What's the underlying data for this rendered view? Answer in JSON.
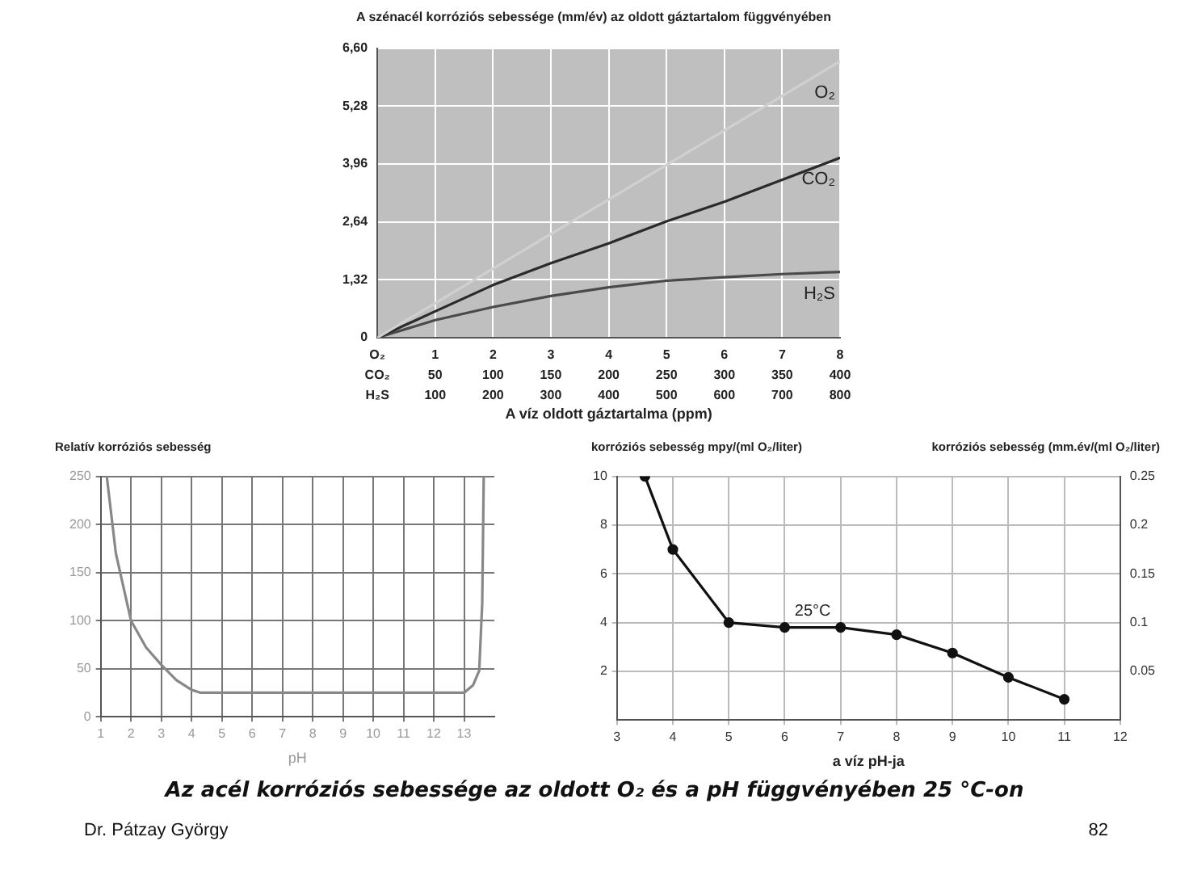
{
  "chart_data": [
    {
      "type": "line",
      "title": "A szénacél korróziós sebessége (mm/év) az oldott gáztartalom függvényében",
      "xlabel": "A víz oldott gáztartalma (ppm)",
      "xlim": [
        0,
        8
      ],
      "xticks": [
        {
          "value": 0,
          "label": "O₂"
        },
        1,
        2,
        3,
        4,
        5,
        6,
        7,
        8
      ],
      "x2lim": [
        0,
        400
      ],
      "x2ticks": [
        {
          "value": 0,
          "label": "CO₂"
        },
        50,
        100,
        150,
        200,
        250,
        300,
        350,
        400
      ],
      "annotations": [
        "H₂S",
        "100",
        "200",
        "300",
        "400",
        "500",
        "600",
        "700",
        "800"
      ],
      "ylim": [
        0,
        6.6
      ],
      "yticks": [
        0,
        {
          "value": 1.32,
          "label": "1,32"
        },
        {
          "value": 2.64,
          "label": "2,64"
        },
        {
          "value": 3.96,
          "label": "3,96"
        },
        {
          "value": 5.28,
          "label": "5,28"
        },
        {
          "value": 6.6,
          "label": "6,60"
        }
      ],
      "grid": true,
      "marker": "none",
      "series": [
        {
          "name": "O₂",
          "color": "#d0d0d0",
          "x": [
            0,
            4,
            8
          ],
          "values": [
            0,
            3.15,
            6.3
          ]
        },
        {
          "name": "CO₂",
          "color": "#2a2a2a",
          "x": [
            0,
            1,
            2,
            3,
            4,
            5,
            6,
            7,
            8
          ],
          "values": [
            0,
            0.6,
            1.2,
            1.7,
            2.15,
            2.65,
            3.1,
            3.6,
            4.1
          ]
        },
        {
          "name": "H₂S",
          "color": "#4a4a4a",
          "x": [
            0,
            1,
            2,
            3,
            4,
            5,
            6,
            7,
            8
          ],
          "values": [
            0,
            0.4,
            0.7,
            0.95,
            1.15,
            1.3,
            1.38,
            1.45,
            1.5
          ]
        }
      ]
    },
    {
      "type": "line",
      "ylabel": "Relatív korróziós sebesség",
      "xlabel": "pH",
      "xlim": [
        1,
        14
      ],
      "xticks": [
        1,
        2,
        3,
        4,
        5,
        6,
        7,
        8,
        9,
        10,
        11,
        12,
        13
      ],
      "ylim": [
        0,
        250
      ],
      "yticks": [
        0,
        50,
        100,
        150,
        200,
        250
      ],
      "grid": true,
      "marker": "none",
      "series": [
        {
          "color": "#888888",
          "x": [
            1.2,
            1.5,
            2,
            2.5,
            3,
            3.5,
            4,
            4.3,
            13,
            13.3,
            13.5,
            13.6,
            13.65
          ],
          "values": [
            250,
            170,
            100,
            72,
            54,
            38,
            28,
            25,
            25,
            33,
            48,
            118,
            250
          ]
        }
      ]
    },
    {
      "type": "line",
      "ylabel": "korróziós sebesség mpy/(ml O₂/liter)",
      "y2label": "korróziós sebesség (mm.év/(ml O₂/liter)",
      "xlabel": "a víz pH-ja",
      "xlim": [
        3,
        12
      ],
      "xticks": [
        3,
        4,
        5,
        6,
        7,
        8,
        9,
        10,
        11,
        12
      ],
      "ylim": [
        0,
        10
      ],
      "yticks": [
        2,
        4,
        6,
        8,
        10
      ],
      "y2lim": [
        0,
        0.25
      ],
      "y2ticks": [
        0.05,
        0.1,
        0.15,
        0.2,
        0.25
      ],
      "grid": true,
      "marker": "circle",
      "series": [
        {
          "color": "#111111",
          "x": [
            3.5,
            4,
            5,
            6,
            7,
            8,
            9,
            10,
            11
          ],
          "values": [
            10,
            7,
            4,
            3.8,
            3.8,
            3.5,
            2.75,
            1.75,
            0.85
          ]
        }
      ],
      "annotations": [
        {
          "text": "25°C",
          "x": 6.5,
          "y": 3.8
        },
        "Az acél korróziós sebessége az oldott O₂ és a pH függvényében 25 °C-on",
        "Dr. Pátzay György",
        "82"
      ]
    }
  ]
}
